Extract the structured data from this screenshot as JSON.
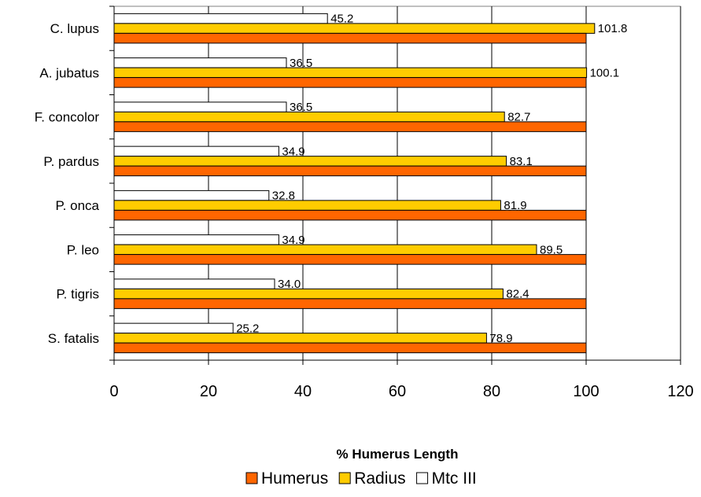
{
  "chart_data": {
    "type": "bar",
    "orientation": "horizontal",
    "categories": [
      "C. lupus",
      "A. jubatus",
      "F. concolor",
      "P. pardus",
      "P. onca",
      "P. leo",
      "P. tigris",
      "S. fatalis"
    ],
    "series": [
      {
        "name": "Humerus",
        "values": [
          100,
          100,
          100,
          100,
          100,
          100,
          100,
          100
        ],
        "color": "#ff6600",
        "labeled": false
      },
      {
        "name": "Radius",
        "values": [
          101.8,
          100.1,
          82.7,
          83.1,
          81.9,
          89.5,
          82.4,
          78.9
        ],
        "color": "#ffcc00",
        "labeled": true
      },
      {
        "name": "Mtc III",
        "values": [
          45.2,
          36.5,
          36.5,
          34.9,
          32.8,
          34.9,
          34.0,
          25.2
        ],
        "color": "#ffffff",
        "labeled": true
      }
    ],
    "data_labels": {
      "Radius": [
        "101.8",
        "100.1",
        "82.7",
        "83.1",
        "81.9",
        "89.5",
        "82.4",
        "78.9"
      ],
      "Mtc III": [
        "45.2",
        "36.5",
        "36.5",
        "34.9",
        "32.8",
        "34.9",
        "34.0",
        "25.2"
      ]
    },
    "title": "",
    "xlabel": "% Humerus Length",
    "ylabel": "",
    "xlim": [
      0,
      120
    ],
    "xticks": [
      0,
      20,
      40,
      60,
      80,
      100,
      120
    ],
    "legend_position": "bottom",
    "grid": "vertical major gridlines"
  }
}
